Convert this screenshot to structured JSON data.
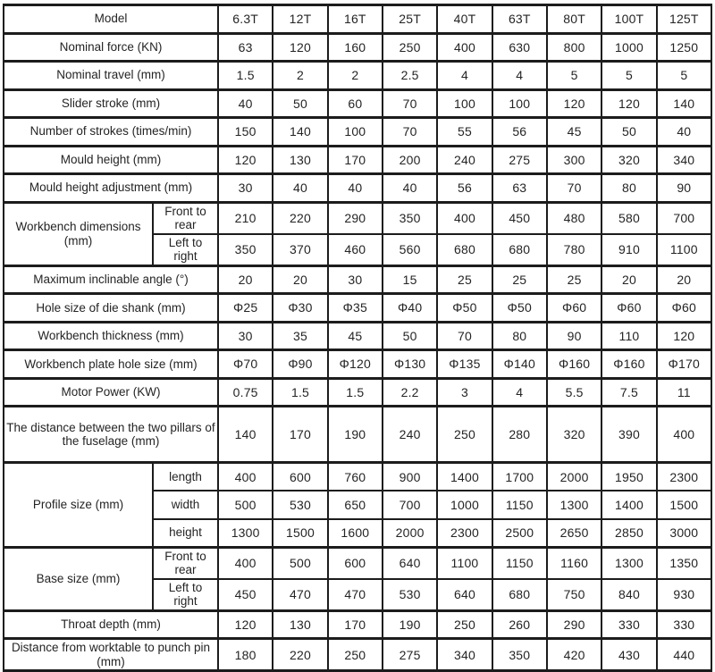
{
  "chart_data": {
    "type": "table",
    "columns": [
      "Model",
      "6.3T",
      "12T",
      "16T",
      "25T",
      "40T",
      "63T",
      "80T",
      "100T",
      "125T"
    ],
    "rows": [
      {
        "label": "Model",
        "values": [
          "6.3T",
          "12T",
          "16T",
          "25T",
          "40T",
          "63T",
          "80T",
          "100T",
          "125T"
        ]
      },
      {
        "label": "Nominal force (KN)",
        "values": [
          "63",
          "120",
          "160",
          "250",
          "400",
          "630",
          "800",
          "1000",
          "1250"
        ]
      },
      {
        "label": "Nominal travel (mm)",
        "values": [
          "1.5",
          "2",
          "2",
          "2.5",
          "4",
          "4",
          "5",
          "5",
          "5"
        ]
      },
      {
        "label": "Slider stroke (mm)",
        "values": [
          "40",
          "50",
          "60",
          "70",
          "100",
          "100",
          "120",
          "120",
          "140"
        ]
      },
      {
        "label": "Number of strokes (times/min)",
        "values": [
          "150",
          "140",
          "100",
          "70",
          "55",
          "56",
          "45",
          "50",
          "40"
        ]
      },
      {
        "label": "Mould height (mm)",
        "values": [
          "120",
          "130",
          "170",
          "200",
          "240",
          "275",
          "300",
          "320",
          "340"
        ]
      },
      {
        "label": "Mould height adjustment (mm)",
        "values": [
          "30",
          "40",
          "40",
          "40",
          "56",
          "63",
          "70",
          "80",
          "90"
        ]
      },
      {
        "label": "Workbench dimensions (mm)",
        "group": [
          {
            "sublabel": "Front to rear",
            "values": [
              "210",
              "220",
              "290",
              "350",
              "400",
              "450",
              "480",
              "580",
              "700"
            ]
          },
          {
            "sublabel": "Left to right",
            "values": [
              "350",
              "370",
              "460",
              "560",
              "680",
              "680",
              "780",
              "910",
              "1100"
            ]
          }
        ]
      },
      {
        "label": "Maximum inclinable angle (°)",
        "values": [
          "20",
          "20",
          "30",
          "15",
          "25",
          "25",
          "25",
          "20",
          "20"
        ]
      },
      {
        "label": "Hole size of die shank (mm)",
        "values": [
          "Φ25",
          "Φ30",
          "Φ35",
          "Φ40",
          "Φ50",
          "Φ50",
          "Φ60",
          "Φ60",
          "Φ60"
        ]
      },
      {
        "label": "Workbench thickness (mm)",
        "values": [
          "30",
          "35",
          "45",
          "50",
          "70",
          "80",
          "90",
          "110",
          "120"
        ]
      },
      {
        "label": "Workbench plate hole size (mm)",
        "values": [
          "Φ70",
          "Φ90",
          "Φ120",
          "Φ130",
          "Φ135",
          "Φ140",
          "Φ160",
          "Φ160",
          "Φ170"
        ]
      },
      {
        "label": "Motor Power (KW)",
        "values": [
          "0.75",
          "1.5",
          "1.5",
          "2.2",
          "3",
          "4",
          "5.5",
          "7.5",
          "11"
        ]
      },
      {
        "label": "The distance between the two pillars of the fuselage (mm)",
        "tall": true,
        "values": [
          "140",
          "170",
          "190",
          "240",
          "250",
          "280",
          "320",
          "390",
          "400"
        ]
      },
      {
        "label": "Profile size (mm)",
        "group": [
          {
            "sublabel": "length",
            "values": [
              "400",
              "600",
              "760",
              "900",
              "1400",
              "1700",
              "2000",
              "1950",
              "2300"
            ]
          },
          {
            "sublabel": "width",
            "values": [
              "500",
              "530",
              "650",
              "700",
              "1000",
              "1150",
              "1300",
              "1400",
              "1500"
            ]
          },
          {
            "sublabel": "height",
            "values": [
              "1300",
              "1500",
              "1600",
              "2000",
              "2300",
              "2500",
              "2650",
              "2850",
              "3000"
            ]
          }
        ]
      },
      {
        "label": "Base size (mm)",
        "group": [
          {
            "sublabel": "Front to rear",
            "values": [
              "400",
              "500",
              "600",
              "640",
              "1100",
              "1150",
              "1160",
              "1300",
              "1350"
            ]
          },
          {
            "sublabel": "Left to right",
            "values": [
              "450",
              "470",
              "470",
              "530",
              "640",
              "680",
              "750",
              "840",
              "930"
            ]
          }
        ]
      },
      {
        "label": "Throat depth (mm)",
        "values": [
          "120",
          "130",
          "170",
          "190",
          "250",
          "260",
          "290",
          "330",
          "330"
        ]
      },
      {
        "label": "Distance from worktable to punch pin (mm)",
        "values": [
          "180",
          "220",
          "250",
          "275",
          "340",
          "350",
          "420",
          "430",
          "440"
        ]
      }
    ]
  },
  "style": {
    "border_color": "#1c1c1c",
    "text_color": "#242424",
    "background": "#fdfdfd"
  }
}
